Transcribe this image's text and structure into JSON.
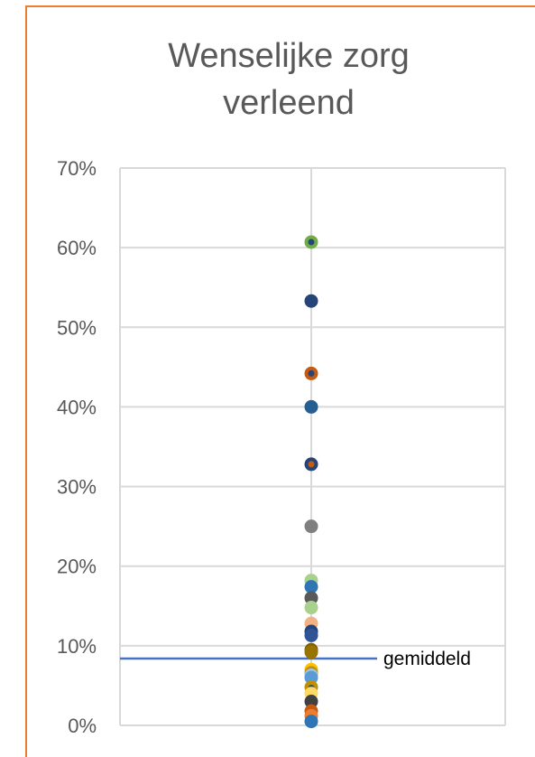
{
  "chart_data": {
    "type": "scatter",
    "title": "Wenselijke zorg verleend",
    "title_lines": [
      "Wenselijke zorg",
      "verleend"
    ],
    "ylim": [
      0,
      0.7
    ],
    "y_ticks": [
      {
        "value": 0.0,
        "label": "0%"
      },
      {
        "value": 0.1,
        "label": "10%"
      },
      {
        "value": 0.2,
        "label": "20%"
      },
      {
        "value": 0.3,
        "label": "30%"
      },
      {
        "value": 0.4,
        "label": "40%"
      },
      {
        "value": 0.5,
        "label": "50%"
      },
      {
        "value": 0.6,
        "label": "60%"
      },
      {
        "value": 0.7,
        "label": "70%"
      }
    ],
    "grid": true,
    "mean_line": {
      "value": 0.084,
      "label": "gemiddeld",
      "color": "#4472C4"
    },
    "points": [
      {
        "y": 0.607,
        "color": "#70AD47"
      },
      {
        "y": 0.607,
        "color": "#264478",
        "small": true
      },
      {
        "y": 0.533,
        "color": "#264478"
      },
      {
        "y": 0.442,
        "color": "#C55A11"
      },
      {
        "y": 0.442,
        "color": "#264478",
        "small": true
      },
      {
        "y": 0.4,
        "color": "#255E91"
      },
      {
        "y": 0.328,
        "color": "#264478"
      },
      {
        "y": 0.328,
        "color": "#C55A11",
        "small": true
      },
      {
        "y": 0.25,
        "color": "#7F7F7F"
      },
      {
        "y": 0.182,
        "color": "#A9D18E"
      },
      {
        "y": 0.174,
        "color": "#2E75B6"
      },
      {
        "y": 0.16,
        "color": "#595959"
      },
      {
        "y": 0.148,
        "color": "#A9D18E"
      },
      {
        "y": 0.128,
        "color": "#F4B183"
      },
      {
        "y": 0.118,
        "color": "#264478"
      },
      {
        "y": 0.113,
        "color": "#2F5597"
      },
      {
        "y": 0.095,
        "color": "#7F6000"
      },
      {
        "y": 0.092,
        "color": "#997300"
      },
      {
        "y": 0.07,
        "color": "#FFC000"
      },
      {
        "y": 0.066,
        "color": "#BF9000"
      },
      {
        "y": 0.063,
        "color": "#9DC3E6"
      },
      {
        "y": 0.06,
        "color": "#5B9BD5"
      },
      {
        "y": 0.048,
        "color": "#BF9000"
      },
      {
        "y": 0.047,
        "color": "#264478",
        "small": true
      },
      {
        "y": 0.04,
        "color": "#FFD966"
      },
      {
        "y": 0.03,
        "color": "#404040"
      },
      {
        "y": 0.018,
        "color": "#C55A11"
      },
      {
        "y": 0.012,
        "color": "#ED7D31"
      },
      {
        "y": 0.005,
        "color": "#2E75B6"
      }
    ]
  }
}
